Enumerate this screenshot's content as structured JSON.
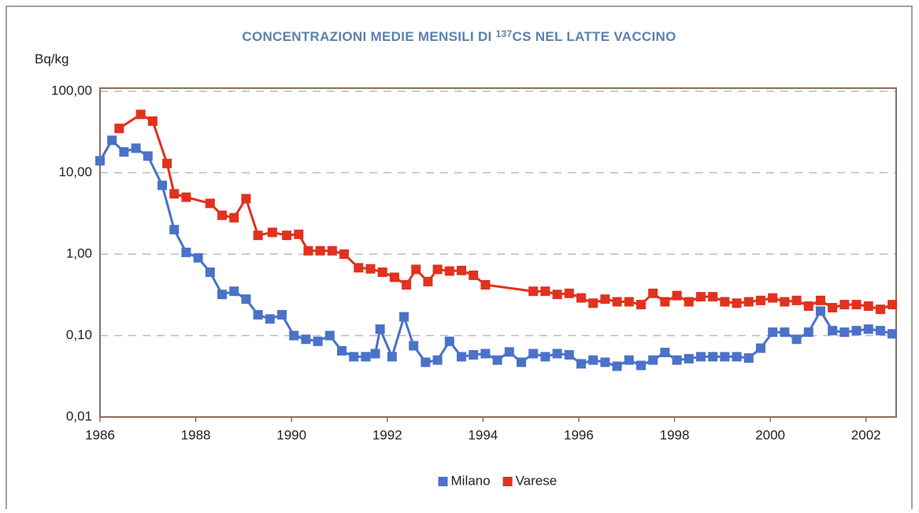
{
  "chart_data": {
    "type": "line",
    "title": {
      "before": "CONCENTRAZIONI MEDIE MENSILI DI",
      "superscript": "137",
      "after": "CS NEL LATTE VACCINO"
    },
    "y_label": "Bq/kg",
    "log_y": true,
    "grid": true,
    "legend": "bottom",
    "xlim": [
      1986,
      2002.63
    ],
    "xticks": [
      1986,
      1988,
      1990,
      1992,
      1994,
      1996,
      1998,
      2000,
      2002
    ],
    "ylim": [
      0.01,
      100
    ],
    "yticks": [
      {
        "value": 0.01,
        "label": "0,01"
      },
      {
        "value": 0.1,
        "label": "0,10"
      },
      {
        "value": 1,
        "label": "1,00"
      },
      {
        "value": 10,
        "label": "10,00"
      },
      {
        "value": 100,
        "label": "100,00"
      }
    ],
    "series": [
      {
        "name": "Milano",
        "color": "#4a72c8",
        "x": [
          1986.0,
          1986.25,
          1986.5,
          1986.75,
          1987.0,
          1987.3,
          1987.55,
          1987.8,
          1988.05,
          1988.3,
          1988.55,
          1988.8,
          1989.05,
          1989.3,
          1989.55,
          1989.8,
          1990.05,
          1990.3,
          1990.55,
          1990.8,
          1991.05,
          1991.3,
          1991.55,
          1991.75,
          1991.85,
          1992.1,
          1992.35,
          1992.55,
          1992.8,
          1993.05,
          1993.3,
          1993.55,
          1993.8,
          1994.05,
          1994.3,
          1994.55,
          1994.8,
          1995.05,
          1995.3,
          1995.55,
          1995.8,
          1996.05,
          1996.3,
          1996.55,
          1996.8,
          1997.05,
          1997.3,
          1997.55,
          1997.8,
          1998.05,
          1998.3,
          1998.55,
          1998.8,
          1999.05,
          1999.3,
          1999.55,
          1999.8,
          2000.05,
          2000.3,
          2000.55,
          2000.8,
          2001.05,
          2001.3,
          2001.55,
          2001.8,
          2002.05,
          2002.3,
          2002.55
        ],
        "values": [
          14,
          25,
          18,
          20,
          16,
          7,
          2,
          1.05,
          0.9,
          0.6,
          0.32,
          0.35,
          0.28,
          0.18,
          0.16,
          0.18,
          0.1,
          0.09,
          0.085,
          0.1,
          0.065,
          0.055,
          0.055,
          0.06,
          0.12,
          0.055,
          0.17,
          0.075,
          0.047,
          0.05,
          0.085,
          0.055,
          0.058,
          0.06,
          0.05,
          0.063,
          0.047,
          0.06,
          0.055,
          0.06,
          0.058,
          0.045,
          0.05,
          0.047,
          0.042,
          0.05,
          0.043,
          0.05,
          0.062,
          0.05,
          0.052,
          0.055,
          0.055,
          0.055,
          0.055,
          0.053,
          0.07,
          0.11,
          0.11,
          0.09,
          0.11,
          0.2,
          0.115,
          0.11,
          0.115,
          0.12,
          0.115,
          0.105
        ]
      },
      {
        "name": "Varese",
        "color": "#e0321e",
        "x": [
          1986.4,
          1986.85,
          1987.1,
          1987.4,
          1987.55,
          1987.8,
          1988.3,
          1988.55,
          1988.8,
          1989.05,
          1989.3,
          1989.6,
          1989.9,
          1990.15,
          1990.35,
          1990.6,
          1990.85,
          1991.1,
          1991.4,
          1991.65,
          1991.9,
          1992.15,
          1992.4,
          1992.6,
          1992.85,
          1993.05,
          1993.3,
          1993.55,
          1993.8,
          1994.05,
          1995.05,
          1995.3,
          1995.55,
          1995.8,
          1996.05,
          1996.3,
          1996.55,
          1996.8,
          1997.05,
          1997.3,
          1997.55,
          1997.8,
          1998.05,
          1998.3,
          1998.55,
          1998.8,
          1999.05,
          1999.3,
          1999.55,
          1999.8,
          2000.05,
          2000.3,
          2000.55,
          2000.8,
          2001.05,
          2001.3,
          2001.55,
          2001.8,
          2002.05,
          2002.3,
          2002.55
        ],
        "values": [
          35,
          52,
          43,
          13,
          5.5,
          5,
          4.2,
          3,
          2.8,
          4.8,
          1.7,
          1.85,
          1.7,
          1.75,
          1.1,
          1.1,
          1.1,
          1.0,
          0.68,
          0.66,
          0.6,
          0.52,
          0.42,
          0.65,
          0.46,
          0.65,
          0.62,
          0.63,
          0.55,
          0.42,
          0.35,
          0.35,
          0.32,
          0.33,
          0.29,
          0.25,
          0.28,
          0.26,
          0.26,
          0.24,
          0.33,
          0.26,
          0.31,
          0.26,
          0.3,
          0.3,
          0.26,
          0.25,
          0.26,
          0.27,
          0.29,
          0.26,
          0.27,
          0.23,
          0.27,
          0.22,
          0.24,
          0.24,
          0.23,
          0.21,
          0.24
        ]
      }
    ]
  }
}
